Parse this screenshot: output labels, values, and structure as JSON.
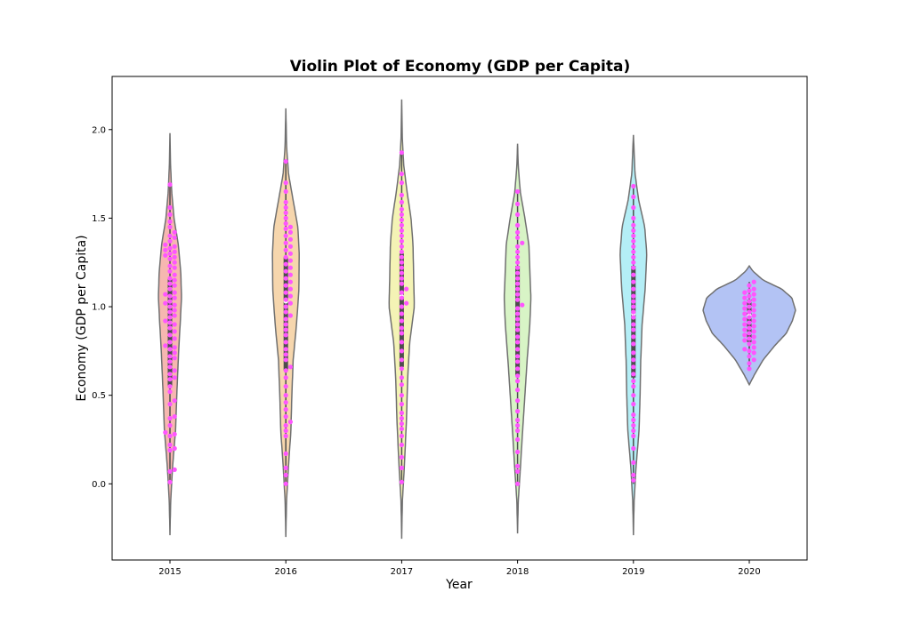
{
  "chart_data": {
    "type": "violin",
    "title": "Violin Plot of Economy (GDP per Capita)",
    "xlabel": "Year",
    "ylabel": "Economy (GDP per Capita)",
    "categories": [
      "2015",
      "2016",
      "2017",
      "2018",
      "2019",
      "2020"
    ],
    "ylim": [
      -0.43,
      2.3
    ],
    "yticks": [
      0.0,
      0.5,
      1.0,
      1.5,
      2.0
    ],
    "ytick_labels": [
      "0.0",
      "0.5",
      "1.0",
      "1.5",
      "2.0"
    ],
    "grid": false,
    "legend": "none",
    "violins": [
      {
        "category": "2015",
        "min": 0.0,
        "max": 1.69,
        "q1": 0.55,
        "median": 0.91,
        "q3": 1.16,
        "range": [
          -0.29,
          1.98
        ],
        "profile": [
          [
            -0.29,
            0.0
          ],
          [
            -0.1,
            0.06
          ],
          [
            0.1,
            0.23
          ],
          [
            0.3,
            0.48
          ],
          [
            0.55,
            0.62
          ],
          [
            0.75,
            0.75
          ],
          [
            0.9,
            0.88
          ],
          [
            1.05,
            1.0
          ],
          [
            1.2,
            0.93
          ],
          [
            1.35,
            0.72
          ],
          [
            1.5,
            0.35
          ],
          [
            1.65,
            0.15
          ],
          [
            1.8,
            0.05
          ],
          [
            1.98,
            0.0
          ]
        ]
      },
      {
        "category": "2016",
        "min": 0.0,
        "max": 1.82,
        "q1": 0.64,
        "median": 1.03,
        "q3": 1.28,
        "range": [
          -0.3,
          2.12
        ],
        "profile": [
          [
            -0.3,
            0.0
          ],
          [
            -0.1,
            0.05
          ],
          [
            0.1,
            0.2
          ],
          [
            0.3,
            0.38
          ],
          [
            0.5,
            0.45
          ],
          [
            0.7,
            0.55
          ],
          [
            0.9,
            0.8
          ],
          [
            1.1,
            0.98
          ],
          [
            1.3,
            1.0
          ],
          [
            1.45,
            0.9
          ],
          [
            1.6,
            0.55
          ],
          [
            1.75,
            0.2
          ],
          [
            1.9,
            0.06
          ],
          [
            2.12,
            0.0
          ]
        ]
      },
      {
        "category": "2017",
        "min": 0.0,
        "max": 1.87,
        "q1": 0.66,
        "median": 1.06,
        "q3": 1.3,
        "range": [
          -0.31,
          2.17
        ],
        "profile": [
          [
            -0.31,
            0.0
          ],
          [
            -0.1,
            0.05
          ],
          [
            0.1,
            0.2
          ],
          [
            0.35,
            0.35
          ],
          [
            0.6,
            0.45
          ],
          [
            0.8,
            0.6
          ],
          [
            1.0,
            0.95
          ],
          [
            1.15,
            0.9
          ],
          [
            1.35,
            0.85
          ],
          [
            1.5,
            0.7
          ],
          [
            1.65,
            0.4
          ],
          [
            1.8,
            0.15
          ],
          [
            1.95,
            0.05
          ],
          [
            2.17,
            0.0
          ]
        ]
      },
      {
        "category": "2018",
        "min": 0.0,
        "max": 1.65,
        "q1": 0.61,
        "median": 0.99,
        "q3": 1.23,
        "range": [
          -0.28,
          1.92
        ],
        "profile": [
          [
            -0.28,
            0.0
          ],
          [
            -0.1,
            0.05
          ],
          [
            0.1,
            0.22
          ],
          [
            0.3,
            0.38
          ],
          [
            0.5,
            0.55
          ],
          [
            0.7,
            0.72
          ],
          [
            0.9,
            0.92
          ],
          [
            1.05,
            1.0
          ],
          [
            1.2,
            0.92
          ],
          [
            1.35,
            0.85
          ],
          [
            1.5,
            0.55
          ],
          [
            1.65,
            0.2
          ],
          [
            1.8,
            0.05
          ],
          [
            1.92,
            0.0
          ]
        ]
      },
      {
        "category": "2019",
        "min": 0.0,
        "max": 1.68,
        "q1": 0.6,
        "median": 0.96,
        "q3": 1.23,
        "range": [
          -0.29,
          1.97
        ],
        "profile": [
          [
            -0.29,
            0.0
          ],
          [
            -0.1,
            0.05
          ],
          [
            0.1,
            0.2
          ],
          [
            0.3,
            0.42
          ],
          [
            0.5,
            0.5
          ],
          [
            0.7,
            0.55
          ],
          [
            0.9,
            0.65
          ],
          [
            1.1,
            0.88
          ],
          [
            1.3,
            1.0
          ],
          [
            1.45,
            0.85
          ],
          [
            1.6,
            0.4
          ],
          [
            1.75,
            0.12
          ],
          [
            1.97,
            0.0
          ]
        ]
      },
      {
        "category": "2020",
        "min": 0.65,
        "max": 1.14,
        "q1": 0.8,
        "median": 0.95,
        "q3": 1.04,
        "range": [
          0.56,
          1.23
        ],
        "profile": [
          [
            0.56,
            0.0
          ],
          [
            0.62,
            0.12
          ],
          [
            0.7,
            0.3
          ],
          [
            0.78,
            0.55
          ],
          [
            0.85,
            0.8
          ],
          [
            0.92,
            0.93
          ],
          [
            0.98,
            1.0
          ],
          [
            1.05,
            0.92
          ],
          [
            1.1,
            0.7
          ],
          [
            1.15,
            0.3
          ],
          [
            1.2,
            0.08
          ],
          [
            1.23,
            0.0
          ]
        ]
      }
    ],
    "points": {
      "2015": [
        0.01,
        0.07,
        0.08,
        0.19,
        0.2,
        0.22,
        0.27,
        0.28,
        0.29,
        0.33,
        0.37,
        0.38,
        0.45,
        0.47,
        0.52,
        0.55,
        0.59,
        0.6,
        0.62,
        0.64,
        0.66,
        0.69,
        0.71,
        0.72,
        0.74,
        0.76,
        0.77,
        0.78,
        0.8,
        0.82,
        0.84,
        0.86,
        0.88,
        0.9,
        0.91,
        0.92,
        0.94,
        0.95,
        0.97,
        0.98,
        1.0,
        1.01,
        1.02,
        1.03,
        1.05,
        1.06,
        1.07,
        1.08,
        1.1,
        1.12,
        1.13,
        1.15,
        1.16,
        1.18,
        1.2,
        1.22,
        1.23,
        1.25,
        1.27,
        1.28,
        1.29,
        1.3,
        1.31,
        1.32,
        1.33,
        1.34,
        1.35,
        1.37,
        1.39,
        1.4,
        1.42,
        1.45,
        1.48,
        1.52,
        1.56,
        1.69
      ],
      "2016": [
        0.0,
        0.05,
        0.09,
        0.17,
        0.27,
        0.3,
        0.33,
        0.35,
        0.38,
        0.42,
        0.46,
        0.5,
        0.55,
        0.6,
        0.64,
        0.66,
        0.7,
        0.73,
        0.76,
        0.8,
        0.84,
        0.87,
        0.9,
        0.93,
        0.95,
        0.97,
        1.0,
        1.02,
        1.04,
        1.06,
        1.08,
        1.1,
        1.12,
        1.14,
        1.16,
        1.18,
        1.2,
        1.22,
        1.24,
        1.26,
        1.28,
        1.3,
        1.32,
        1.34,
        1.36,
        1.38,
        1.4,
        1.42,
        1.44,
        1.45,
        1.47,
        1.5,
        1.53,
        1.56,
        1.59,
        1.65,
        1.7,
        1.82
      ],
      "2017": [
        0.01,
        0.09,
        0.15,
        0.22,
        0.27,
        0.31,
        0.34,
        0.37,
        0.4,
        0.45,
        0.5,
        0.56,
        0.6,
        0.65,
        0.7,
        0.75,
        0.8,
        0.85,
        0.88,
        0.92,
        0.96,
        1.0,
        1.02,
        1.05,
        1.08,
        1.1,
        1.13,
        1.16,
        1.19,
        1.22,
        1.25,
        1.28,
        1.31,
        1.34,
        1.37,
        1.4,
        1.43,
        1.46,
        1.49,
        1.52,
        1.55,
        1.59,
        1.63,
        1.7,
        1.75,
        1.87
      ],
      "2018": [
        0.0,
        0.07,
        0.1,
        0.18,
        0.25,
        0.3,
        0.33,
        0.36,
        0.41,
        0.47,
        0.53,
        0.58,
        0.61,
        0.65,
        0.69,
        0.72,
        0.76,
        0.8,
        0.83,
        0.87,
        0.9,
        0.93,
        0.96,
        0.99,
        1.01,
        1.04,
        1.07,
        1.1,
        1.13,
        1.16,
        1.19,
        1.22,
        1.25,
        1.28,
        1.31,
        1.34,
        1.36,
        1.39,
        1.42,
        1.46,
        1.52,
        1.58,
        1.65
      ],
      "2019": [
        0.02,
        0.05,
        0.12,
        0.2,
        0.27,
        0.3,
        0.33,
        0.36,
        0.39,
        0.45,
        0.5,
        0.55,
        0.58,
        0.62,
        0.66,
        0.7,
        0.74,
        0.79,
        0.83,
        0.87,
        0.9,
        0.94,
        0.97,
        1.0,
        1.03,
        1.06,
        1.1,
        1.14,
        1.18,
        1.22,
        1.25,
        1.28,
        1.31,
        1.34,
        1.37,
        1.4,
        1.43,
        1.46,
        1.5,
        1.56,
        1.62,
        1.68
      ],
      "2020": [
        0.65,
        0.68,
        0.7,
        0.72,
        0.74,
        0.75,
        0.76,
        0.77,
        0.79,
        0.8,
        0.81,
        0.82,
        0.83,
        0.84,
        0.85,
        0.86,
        0.87,
        0.88,
        0.89,
        0.9,
        0.91,
        0.92,
        0.93,
        0.94,
        0.95,
        0.96,
        0.97,
        0.98,
        0.99,
        1.0,
        1.01,
        1.02,
        1.03,
        1.04,
        1.05,
        1.06,
        1.07,
        1.08,
        1.09,
        1.1,
        1.12,
        1.14
      ]
    },
    "colors": {
      "violin_fills": [
        "#f6b7b0",
        "#f6d6ad",
        "#f4f3b5",
        "#d8f4c6",
        "#b4eef6",
        "#b3c3f4"
      ],
      "violin_edge": "#707070",
      "box": "#4d4d4d",
      "points": "#ff55ff"
    }
  }
}
